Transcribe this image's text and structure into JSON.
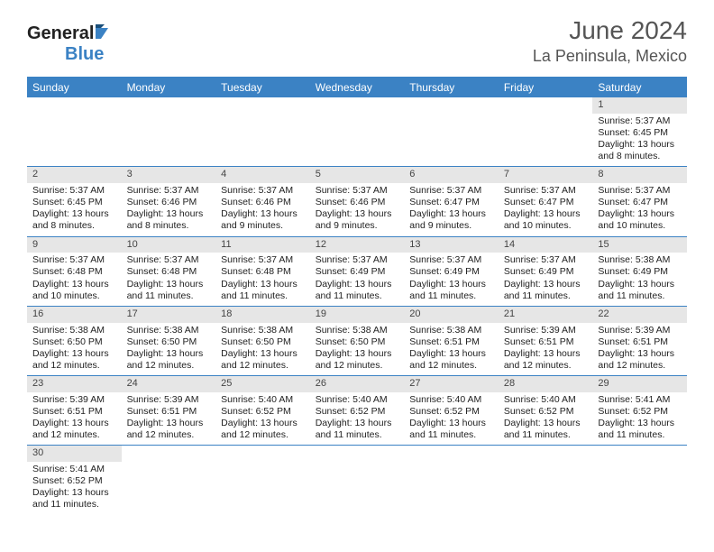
{
  "brand": {
    "name_part1": "General",
    "name_part2": "Blue"
  },
  "title": "June 2024",
  "location": "La Peninsula, Mexico",
  "day_headers": [
    "Sunday",
    "Monday",
    "Tuesday",
    "Wednesday",
    "Thursday",
    "Friday",
    "Saturday"
  ],
  "colors": {
    "header_bg": "#3b82c4",
    "header_text": "#ffffff",
    "daynum_bg": "#e6e6e6",
    "text": "#222222",
    "title_text": "#555555",
    "border": "#3b82c4"
  },
  "weeks": [
    [
      {
        "n": "",
        "empty": true
      },
      {
        "n": "",
        "empty": true
      },
      {
        "n": "",
        "empty": true
      },
      {
        "n": "",
        "empty": true
      },
      {
        "n": "",
        "empty": true
      },
      {
        "n": "",
        "empty": true
      },
      {
        "n": "1",
        "sunrise": "5:37 AM",
        "sunset": "6:45 PM",
        "daylight": "13 hours and 8 minutes."
      }
    ],
    [
      {
        "n": "2",
        "sunrise": "5:37 AM",
        "sunset": "6:45 PM",
        "daylight": "13 hours and 8 minutes."
      },
      {
        "n": "3",
        "sunrise": "5:37 AM",
        "sunset": "6:46 PM",
        "daylight": "13 hours and 8 minutes."
      },
      {
        "n": "4",
        "sunrise": "5:37 AM",
        "sunset": "6:46 PM",
        "daylight": "13 hours and 9 minutes."
      },
      {
        "n": "5",
        "sunrise": "5:37 AM",
        "sunset": "6:46 PM",
        "daylight": "13 hours and 9 minutes."
      },
      {
        "n": "6",
        "sunrise": "5:37 AM",
        "sunset": "6:47 PM",
        "daylight": "13 hours and 9 minutes."
      },
      {
        "n": "7",
        "sunrise": "5:37 AM",
        "sunset": "6:47 PM",
        "daylight": "13 hours and 10 minutes."
      },
      {
        "n": "8",
        "sunrise": "5:37 AM",
        "sunset": "6:47 PM",
        "daylight": "13 hours and 10 minutes."
      }
    ],
    [
      {
        "n": "9",
        "sunrise": "5:37 AM",
        "sunset": "6:48 PM",
        "daylight": "13 hours and 10 minutes."
      },
      {
        "n": "10",
        "sunrise": "5:37 AM",
        "sunset": "6:48 PM",
        "daylight": "13 hours and 11 minutes."
      },
      {
        "n": "11",
        "sunrise": "5:37 AM",
        "sunset": "6:48 PM",
        "daylight": "13 hours and 11 minutes."
      },
      {
        "n": "12",
        "sunrise": "5:37 AM",
        "sunset": "6:49 PM",
        "daylight": "13 hours and 11 minutes."
      },
      {
        "n": "13",
        "sunrise": "5:37 AM",
        "sunset": "6:49 PM",
        "daylight": "13 hours and 11 minutes."
      },
      {
        "n": "14",
        "sunrise": "5:37 AM",
        "sunset": "6:49 PM",
        "daylight": "13 hours and 11 minutes."
      },
      {
        "n": "15",
        "sunrise": "5:38 AM",
        "sunset": "6:49 PM",
        "daylight": "13 hours and 11 minutes."
      }
    ],
    [
      {
        "n": "16",
        "sunrise": "5:38 AM",
        "sunset": "6:50 PM",
        "daylight": "13 hours and 12 minutes."
      },
      {
        "n": "17",
        "sunrise": "5:38 AM",
        "sunset": "6:50 PM",
        "daylight": "13 hours and 12 minutes."
      },
      {
        "n": "18",
        "sunrise": "5:38 AM",
        "sunset": "6:50 PM",
        "daylight": "13 hours and 12 minutes."
      },
      {
        "n": "19",
        "sunrise": "5:38 AM",
        "sunset": "6:50 PM",
        "daylight": "13 hours and 12 minutes."
      },
      {
        "n": "20",
        "sunrise": "5:38 AM",
        "sunset": "6:51 PM",
        "daylight": "13 hours and 12 minutes."
      },
      {
        "n": "21",
        "sunrise": "5:39 AM",
        "sunset": "6:51 PM",
        "daylight": "13 hours and 12 minutes."
      },
      {
        "n": "22",
        "sunrise": "5:39 AM",
        "sunset": "6:51 PM",
        "daylight": "13 hours and 12 minutes."
      }
    ],
    [
      {
        "n": "23",
        "sunrise": "5:39 AM",
        "sunset": "6:51 PM",
        "daylight": "13 hours and 12 minutes."
      },
      {
        "n": "24",
        "sunrise": "5:39 AM",
        "sunset": "6:51 PM",
        "daylight": "13 hours and 12 minutes."
      },
      {
        "n": "25",
        "sunrise": "5:40 AM",
        "sunset": "6:52 PM",
        "daylight": "13 hours and 12 minutes."
      },
      {
        "n": "26",
        "sunrise": "5:40 AM",
        "sunset": "6:52 PM",
        "daylight": "13 hours and 11 minutes."
      },
      {
        "n": "27",
        "sunrise": "5:40 AM",
        "sunset": "6:52 PM",
        "daylight": "13 hours and 11 minutes."
      },
      {
        "n": "28",
        "sunrise": "5:40 AM",
        "sunset": "6:52 PM",
        "daylight": "13 hours and 11 minutes."
      },
      {
        "n": "29",
        "sunrise": "5:41 AM",
        "sunset": "6:52 PM",
        "daylight": "13 hours and 11 minutes."
      }
    ],
    [
      {
        "n": "30",
        "sunrise": "5:41 AM",
        "sunset": "6:52 PM",
        "daylight": "13 hours and 11 minutes."
      },
      {
        "n": "",
        "empty": true
      },
      {
        "n": "",
        "empty": true
      },
      {
        "n": "",
        "empty": true
      },
      {
        "n": "",
        "empty": true
      },
      {
        "n": "",
        "empty": true
      },
      {
        "n": "",
        "empty": true
      }
    ]
  ],
  "labels": {
    "sunrise_prefix": "Sunrise: ",
    "sunset_prefix": "Sunset: ",
    "daylight_prefix": "Daylight: "
  }
}
